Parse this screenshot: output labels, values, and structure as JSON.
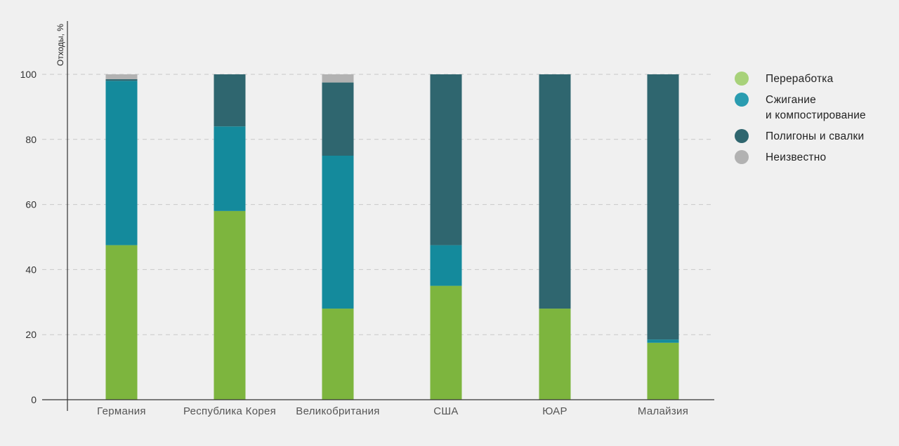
{
  "chart_data": {
    "type": "bar",
    "stacked": true,
    "ylabel": "Отходы, %",
    "xlabel": "",
    "ylim": [
      0,
      100
    ],
    "yticks": [
      0,
      20,
      40,
      60,
      80,
      100
    ],
    "grid": "horizontal dashed",
    "legend_position": "right",
    "categories": [
      "Германия",
      "Республика Корея",
      "Великобритания",
      "США",
      "ЮАР",
      "Малайзия"
    ],
    "series": [
      {
        "name": "Переработка",
        "color": "#7db53e",
        "values": [
          47.5,
          58,
          28,
          35,
          28,
          17.5
        ]
      },
      {
        "name": "Сжигание\nи компостирование",
        "color": "#148a9c",
        "values": [
          50.5,
          26,
          47,
          12.5,
          0,
          1
        ]
      },
      {
        "name": "Полигоны и свалки",
        "color": "#2f666f",
        "values": [
          0.5,
          16,
          22.5,
          52.5,
          72,
          81.5
        ]
      },
      {
        "name": "Неизвестно",
        "color": "#b2b2b2",
        "values": [
          1.5,
          0,
          2.5,
          0,
          0,
          0
        ]
      }
    ]
  },
  "legend": {
    "colors": [
      "#a8d27a",
      "#2a9cb0",
      "#2f666f",
      "#b2b2b2"
    ]
  }
}
